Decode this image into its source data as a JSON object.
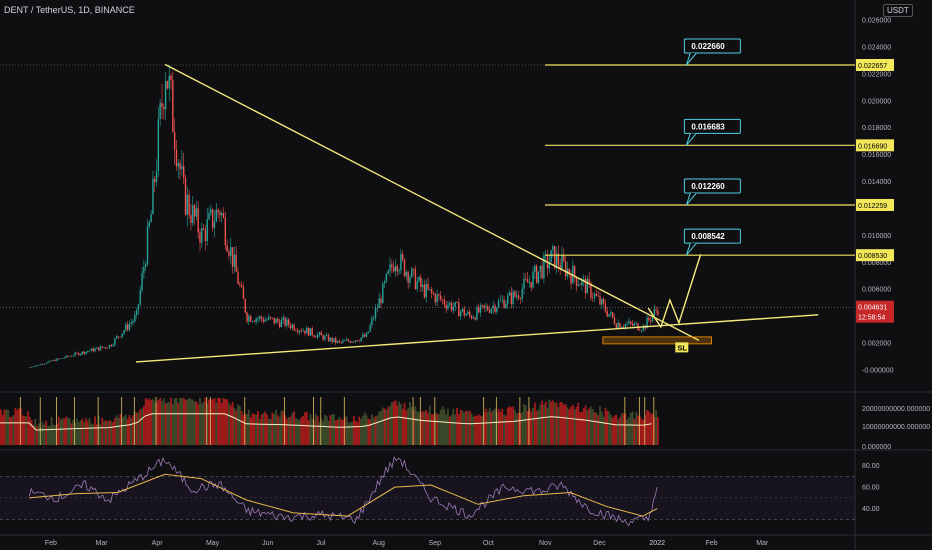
{
  "header": {
    "symbol": "DENT / TetherUS, 1D, BINANCE"
  },
  "currency": "USDT",
  "colors": {
    "bg": "#0f0f12",
    "up": "#26a69a",
    "down": "#ef5350",
    "trend": "#f5e97a",
    "target": "#f0e060",
    "label_border": "#4dd0e1",
    "rsi": "#9c7ab8",
    "rsi_ma": "#e8b84a"
  },
  "chart_data": [
    {
      "type": "candlestick",
      "title": "DENT / TetherUS, 1D, BINANCE",
      "x_tick_labels": [
        "Feb",
        "Mar",
        "Apr",
        "May",
        "Jun",
        "Jul",
        "Aug",
        "Sep",
        "Oct",
        "Nov",
        "Dec",
        "2022",
        "Feb",
        "Mar"
      ],
      "y_tick_labels": [
        "0.026000",
        "0.024000",
        "0.022000",
        "0.020000",
        "0.018000",
        "0.016000",
        "0.014000",
        "0.012000",
        "0.010000",
        "0.008000",
        "0.006000",
        "0.004000",
        "0.002000",
        "-0.000000"
      ],
      "ylim": [
        0,
        0.026
      ],
      "approx_close_path": [
        {
          "x": "2021-01-20",
          "y": 0.0002
        },
        {
          "x": "2021-02-15",
          "y": 0.0012
        },
        {
          "x": "2021-03-05",
          "y": 0.0018
        },
        {
          "x": "2021-03-20",
          "y": 0.004
        },
        {
          "x": "2021-03-28",
          "y": 0.0115
        },
        {
          "x": "2021-04-05",
          "y": 0.0227
        },
        {
          "x": "2021-04-15",
          "y": 0.013
        },
        {
          "x": "2021-04-25",
          "y": 0.01
        },
        {
          "x": "2021-05-05",
          "y": 0.012
        },
        {
          "x": "2021-05-20",
          "y": 0.004
        },
        {
          "x": "2021-06-10",
          "y": 0.0035
        },
        {
          "x": "2021-07-10",
          "y": 0.002
        },
        {
          "x": "2021-07-25",
          "y": 0.0025
        },
        {
          "x": "2021-08-10",
          "y": 0.0084
        },
        {
          "x": "2021-08-25",
          "y": 0.006
        },
        {
          "x": "2021-09-20",
          "y": 0.004
        },
        {
          "x": "2021-10-15",
          "y": 0.0055
        },
        {
          "x": "2021-11-05",
          "y": 0.0084
        },
        {
          "x": "2021-11-25",
          "y": 0.006
        },
        {
          "x": "2021-12-10",
          "y": 0.0035
        },
        {
          "x": "2021-12-25",
          "y": 0.0032
        },
        {
          "x": "2022-01-02",
          "y": 0.0046
        }
      ],
      "last_price_label": "0.004631",
      "countdown_label": "12:58:54",
      "target_levels": [
        {
          "value": 0.022657,
          "price_label": "0.022657",
          "callout": "0.022660"
        },
        {
          "value": 0.01669,
          "price_label": "0.016690",
          "callout": "0.016683"
        },
        {
          "value": 0.012259,
          "price_label": "0.012259",
          "callout": "0.012260"
        },
        {
          "value": 0.00853,
          "price_label": "0.008530",
          "callout": "0.008542"
        }
      ],
      "stop_loss_label": "SL",
      "grid": false
    },
    {
      "type": "bar",
      "title": "",
      "y_tick_labels": [
        "20000000000.000000",
        "10000000000.000000",
        "0.000000"
      ]
    },
    {
      "type": "line",
      "title": "",
      "y_tick_labels": [
        "80.00",
        "60.00",
        "40.00"
      ],
      "bands": [
        70,
        30
      ],
      "ylim": [
        20,
        90
      ],
      "rsi_path": [
        {
          "x": "2021-01-20",
          "y": 55
        },
        {
          "x": "2021-02-05",
          "y": 50
        },
        {
          "x": "2021-02-20",
          "y": 62
        },
        {
          "x": "2021-03-05",
          "y": 48
        },
        {
          "x": "2021-03-25",
          "y": 72
        },
        {
          "x": "2021-04-05",
          "y": 86
        },
        {
          "x": "2021-04-20",
          "y": 58
        },
        {
          "x": "2021-05-05",
          "y": 63
        },
        {
          "x": "2021-05-20",
          "y": 38
        },
        {
          "x": "2021-06-10",
          "y": 32
        },
        {
          "x": "2021-07-01",
          "y": 34
        },
        {
          "x": "2021-07-20",
          "y": 30
        },
        {
          "x": "2021-08-05",
          "y": 75
        },
        {
          "x": "2021-08-12",
          "y": 88
        },
        {
          "x": "2021-08-30",
          "y": 50
        },
        {
          "x": "2021-09-20",
          "y": 34
        },
        {
          "x": "2021-10-10",
          "y": 60
        },
        {
          "x": "2021-10-30",
          "y": 56
        },
        {
          "x": "2021-11-10",
          "y": 62
        },
        {
          "x": "2021-11-25",
          "y": 40
        },
        {
          "x": "2021-12-15",
          "y": 28
        },
        {
          "x": "2021-12-28",
          "y": 30
        },
        {
          "x": "2022-01-02",
          "y": 60
        }
      ],
      "ma_path": [
        {
          "x": "2021-01-20",
          "y": 50
        },
        {
          "x": "2021-02-15",
          "y": 54
        },
        {
          "x": "2021-03-10",
          "y": 55
        },
        {
          "x": "2021-04-05",
          "y": 72
        },
        {
          "x": "2021-04-25",
          "y": 68
        },
        {
          "x": "2021-05-20",
          "y": 48
        },
        {
          "x": "2021-06-15",
          "y": 36
        },
        {
          "x": "2021-07-15",
          "y": 33
        },
        {
          "x": "2021-08-10",
          "y": 60
        },
        {
          "x": "2021-08-30",
          "y": 62
        },
        {
          "x": "2021-09-25",
          "y": 44
        },
        {
          "x": "2021-10-20",
          "y": 52
        },
        {
          "x": "2021-11-15",
          "y": 55
        },
        {
          "x": "2021-12-05",
          "y": 42
        },
        {
          "x": "2021-12-25",
          "y": 33
        },
        {
          "x": "2022-01-02",
          "y": 40
        }
      ]
    }
  ]
}
